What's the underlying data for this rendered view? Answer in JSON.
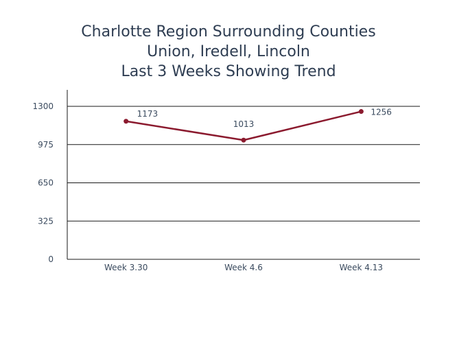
{
  "chart_data": {
    "type": "line",
    "title_lines": [
      "Charlotte Region Surrounding Counties",
      "Union, Iredell, Lincoln",
      "Last 3 Weeks Showing Trend"
    ],
    "categories": [
      "Week 3.30",
      "Week 4.6",
      "Week 4.13"
    ],
    "series": [
      {
        "values": [
          1173,
          1013,
          1256
        ],
        "data_labels": [
          "1173",
          "1013",
          "1256"
        ]
      }
    ],
    "y_ticks": [
      0,
      325,
      650,
      975,
      1300
    ],
    "y_tick_labels": [
      "0",
      "325",
      "650",
      "975",
      "1300"
    ],
    "ylim": [
      0,
      1300
    ],
    "grid": true,
    "legend": "none",
    "xlabel": "",
    "ylabel": "",
    "colors": {
      "line": "#8b1a2e",
      "grid": "#1a1a1a",
      "text": "#2e3d52"
    }
  }
}
